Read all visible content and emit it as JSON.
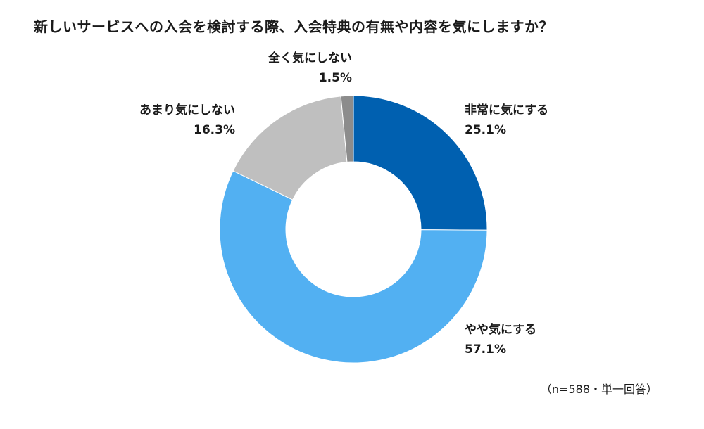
{
  "chart_data": {
    "type": "pie",
    "title": "新しいサービスへの入会を検討する際、入会特典の有無や内容を気にしますか？",
    "categories": [
      "非常に気にする",
      "やや気にする",
      "あまり気にしない",
      "全く気にしない"
    ],
    "values": [
      25.1,
      57.1,
      16.3,
      1.5
    ],
    "value_labels": [
      "25.1%",
      "57.1%",
      "16.3%",
      "1.5%"
    ],
    "colors": [
      "#0060b0",
      "#52b0f2",
      "#bfbfbf",
      "#8c8c8c"
    ],
    "donut": true,
    "start_angle": "12 o'clock, clockwise",
    "legend": "none"
  },
  "note": "（n=588・単一回答）"
}
